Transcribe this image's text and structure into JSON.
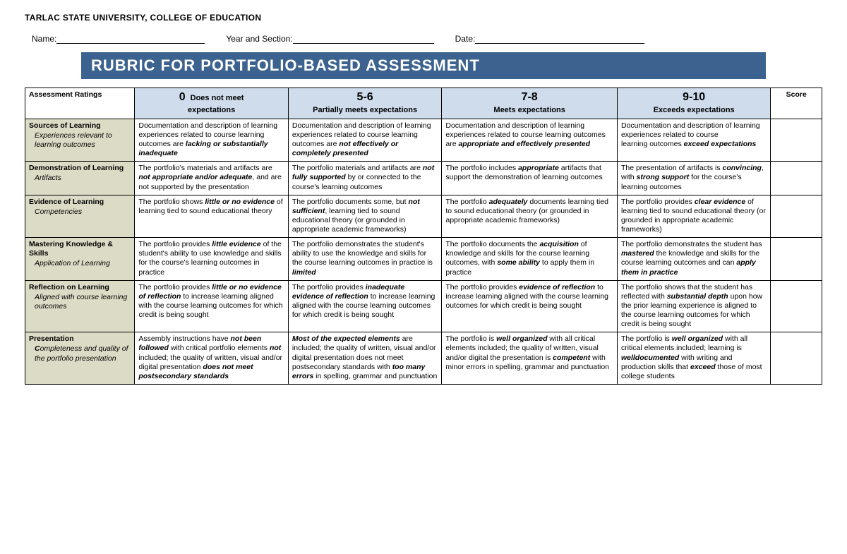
{
  "header": {
    "university": "TARLAC STATE UNIVERSITY, COLLEGE OF EDUCATION",
    "name_label": "Name:",
    "year_label": "Year and Section:",
    "date_label": "Date:",
    "title": "RUBRIC FOR PORTFOLIO-BASED ASSESSMENT"
  },
  "table": {
    "corner": "Assessment Ratings",
    "score_label": "Score",
    "ratings": [
      {
        "num": "0",
        "sub": "Does not meet",
        "sub2": "expectations"
      },
      {
        "num": "5-6",
        "sub": "Partially meets expectations"
      },
      {
        "num": "7-8",
        "sub": "Meets expectations"
      },
      {
        "num": "9-10",
        "sub": "Exceeds expectations"
      }
    ],
    "rows": [
      {
        "cat_title": "Sources of Learning",
        "cat_sub": "Experiences relevant to learning outcomes",
        "cells": [
          "Documentation and description of learning experiences related to course learning outcomes are <span class='bi'>lacking or substantially inadequate</span>",
          "Documentation and description of learning experiences related to course learning outcomes are <span class='bi'>not effectively or completely presented</span>",
          "Documentation and description of learning experiences related to course learning outcomes are <span class='bi'>appropriate and effectively presented</span>",
          "Documentation and description of learning experiences related to course<br>learning outcomes <span class='bi'>exceed expectations</span>"
        ]
      },
      {
        "cat_title": "Demonstration of Learning",
        "cat_sub": "Artifacts",
        "cells": [
          "The portfolio's materials and artifacts are <span class='bi'>not appropriate and/or adequate</span>, and are not supported by the presentation",
          "The portfolio materials and artifacts are <span class='bi'>not fully supported</span> by or connected to the course's learning outcomes",
          "The portfolio includes <span class='bi'>appropriate</span> artifacts that support the demonstration of learning outcomes",
          "The presentation of artifacts is <span class='bi'>convincing</span>, with <span class='bi'>strong support</span> for the course's learning outcomes"
        ]
      },
      {
        "cat_title": "Evidence of Learning",
        "cat_sub": "Competencies",
        "cells": [
          "The portfolio shows <span class='bi'>little or no evidence</span> of learning tied to sound educational theory",
          "The portfolio documents some, but <span class='bi'>not sufficient</span>, learning tied to sound educational theory (or grounded in appropriate academic frameworks)",
          "The portfolio <span class='bi'>adequately</span> documents learning tied to sound educational theory (or grounded in appropriate academic frameworks)",
          "The portfolio provides <span class='bi'>clear evidence</span> of learning tied to sound educational theory (or grounded in appropriate academic frameworks)"
        ]
      },
      {
        "cat_title": "Mastering Knowledge & Skills",
        "cat_sub": "Application of Learning",
        "cells": [
          "The portfolio provides <span class='bi'>little evidence</span> of the student's ability to use knowledge and skills for the course's learning outcomes in practice",
          "The portfolio demonstrates the student's ability to use the knowledge and skills for the course learning outcomes in practice is <span class='bi'>limited</span>",
          "The portfolio documents the <span class='bi'>acquisition</span> of knowledge and skills for the course learning outcomes, with <span class='bi'>some ability</span> to apply them in practice",
          "The portfolio demonstrates the student has <span class='bi'>mastered</span> the knowledge and skills for the course learning outcomes and can <span class='bi'>apply them in practice</span>"
        ]
      },
      {
        "cat_title": "Reflection on Learning",
        "cat_sub": "Aligned with course learning outcomes",
        "cells": [
          "The portfolio provides <span class='bi'>little or no evidence of reflection</span> to increase learning aligned with the course learning outcomes for which credit is being sought",
          "The portfolio provides <span class='bi'>inadequate evidence of reflection</span> to increase learning aligned with the course learning outcomes for which credit is being sought",
          "The portfolio provides <span class='bi'>evidence of reflection</span> to increase learning aligned with the course learning outcomes for which credit is being sought",
          "The portfolio shows that the student has reflected with <span class='bi'>substantial depth</span> upon how the prior learning experience is aligned to the course learning outcomes for which credit is being sought"
        ]
      },
      {
        "cat_title": "Presentation",
        "cat_sub_html": "<b>C</b>ompleteness and quality of the portfolio presentation",
        "cells": [
          "Assembly instructions have <span class='bi'>not been followed</span> with critical portfolio elements <span class='bi'>not</span> included; the quality of written, visual and/or digital presentation <span class='bi'>does not meet postsecondary standards</span>",
          "<span class='bi'>Most of the expected elements</span> are included; the quality of written, visual and/or digital presentation does not meet postsecondary standards with <span class='bi'>too many errors</span> in spelling, grammar and punctuation",
          "The portfolio is <span class='bi'>well organized</span> with all critical elements included; the quality of written, visual and/or digital the presentation is <span class='bi'>competent</span> with minor errors in spelling, grammar and punctuation",
          "The portfolio is <span class='bi'>well organized</span> with all critical elements included; learning is <span class='bi'>welldocumented</span> with writing and production skills that <span class='bi'>exceed</span> those of most college students"
        ]
      }
    ]
  },
  "colors": {
    "title_bg": "#3c638f",
    "rating_bg": "#cfdceb",
    "cat_bg": "#dcdbc6"
  }
}
